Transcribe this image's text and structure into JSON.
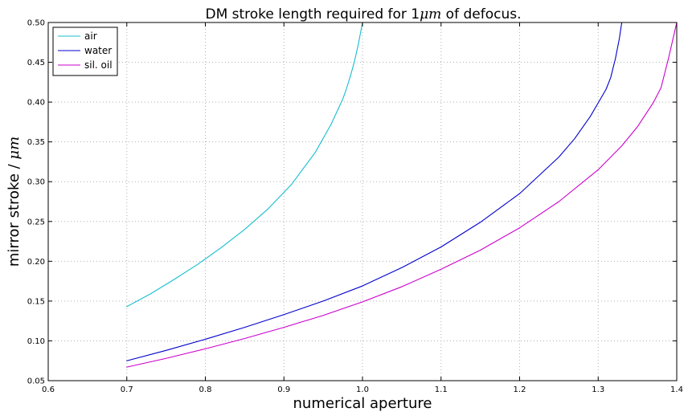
{
  "chart_data": {
    "type": "line",
    "title_parts": {
      "before": "DM stroke length required for 1",
      "math": "μm",
      "after": " of defocus."
    },
    "xlabel": "numerical aperture",
    "ylabel_parts": {
      "before": "mirror stroke / ",
      "math": "μm"
    },
    "xlim": [
      0.6,
      1.4
    ],
    "ylim": [
      0.05,
      0.5
    ],
    "xticks": [
      "0.6",
      "0.7",
      "0.8",
      "0.9",
      "1.0",
      "1.1",
      "1.2",
      "1.3",
      "1.4"
    ],
    "yticks": [
      "0.05",
      "0.10",
      "0.15",
      "0.20",
      "0.25",
      "0.30",
      "0.35",
      "0.40",
      "0.45",
      "0.50"
    ],
    "grid": true,
    "legend_position": "top-left",
    "series": [
      {
        "name": "air",
        "color": "#17BECF",
        "x": [
          0.7,
          0.73,
          0.76,
          0.79,
          0.82,
          0.85,
          0.88,
          0.91,
          0.94,
          0.96,
          0.975,
          0.98,
          0.985,
          0.99,
          0.995,
          1.0
        ],
        "y": [
          0.143,
          0.159,
          0.177,
          0.196,
          0.217,
          0.24,
          0.266,
          0.297,
          0.337,
          0.372,
          0.404,
          0.418,
          0.434,
          0.452,
          0.474,
          0.5
        ]
      },
      {
        "name": "water",
        "color": "#0000CC",
        "x": [
          0.7,
          0.75,
          0.8,
          0.85,
          0.9,
          0.95,
          1.0,
          1.05,
          1.1,
          1.15,
          1.2,
          1.25,
          1.27,
          1.29,
          1.3,
          1.31,
          1.316,
          1.322,
          1.327,
          1.33
        ],
        "y": [
          0.075,
          0.088,
          0.102,
          0.117,
          0.133,
          0.15,
          0.169,
          0.192,
          0.218,
          0.249,
          0.285,
          0.331,
          0.354,
          0.382,
          0.399,
          0.416,
          0.431,
          0.455,
          0.48,
          0.5
        ]
      },
      {
        "name": "sil. oil",
        "color": "#CC00CC",
        "x": [
          0.7,
          0.75,
          0.8,
          0.85,
          0.9,
          0.95,
          1.0,
          1.05,
          1.1,
          1.15,
          1.2,
          1.25,
          1.3,
          1.33,
          1.35,
          1.37,
          1.38,
          1.39,
          1.4
        ],
        "y": [
          0.067,
          0.078,
          0.09,
          0.103,
          0.117,
          0.132,
          0.149,
          0.168,
          0.19,
          0.214,
          0.242,
          0.275,
          0.315,
          0.345,
          0.369,
          0.399,
          0.418,
          0.457,
          0.5
        ]
      }
    ]
  }
}
